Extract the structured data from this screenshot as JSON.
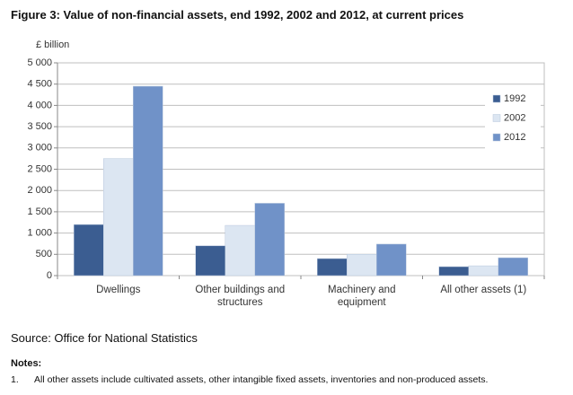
{
  "chart_data": {
    "type": "bar",
    "title": "Figure 3: Value of non-financial assets, end 1992, 2002 and 2012, at current prices",
    "y_label": "£ billion",
    "categories": [
      "Dwellings",
      "Other buildings and structures",
      "Machinery and equipment",
      "All other assets (1)"
    ],
    "series": [
      {
        "name": "1992",
        "color": "#3b5d91",
        "values": [
          1200,
          700,
          400,
          210
        ]
      },
      {
        "name": "2002",
        "color": "#dce6f2",
        "values": [
          2750,
          1180,
          500,
          230
        ]
      },
      {
        "name": "2012",
        "color": "#7092c8",
        "values": [
          4450,
          1700,
          740,
          420
        ]
      }
    ],
    "ylim": [
      0,
      5000
    ],
    "yticks": [
      0,
      500,
      {
        "value": 1000,
        "label": "1 000"
      },
      {
        "value": 1500,
        "label": "1 500"
      },
      {
        "value": 2000,
        "label": "2 000"
      },
      {
        "value": 2500,
        "label": "2 500"
      },
      {
        "value": 3000,
        "label": "3 000"
      },
      {
        "value": 3500,
        "label": "3 500"
      },
      {
        "value": 4000,
        "label": "4 000"
      },
      {
        "value": 4500,
        "label": "4 500"
      },
      {
        "value": 5000,
        "label": "5 000"
      }
    ],
    "grid": true,
    "legend": "right"
  },
  "source": "Source: Office for National Statistics",
  "notes": {
    "heading": "Notes:",
    "items": [
      {
        "number": "1.",
        "text": "All other assets include cultivated assets, other intangible fixed assets, inventories and non-produced assets."
      }
    ]
  }
}
